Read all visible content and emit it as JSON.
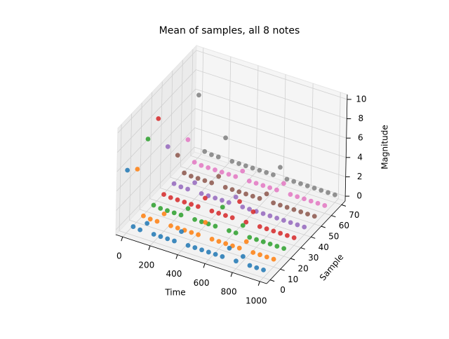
{
  "chart_data": {
    "type": "scatter3d",
    "title": "Mean of samples, all 8 notes",
    "x_label": "Time",
    "y_label": "Sample",
    "z_label": "Magnitude",
    "xlim": [
      -50,
      1050
    ],
    "ylim": [
      -3.5,
      73.5
    ],
    "zlim": [
      -0.5,
      10.5
    ],
    "xticks": [
      0,
      200,
      400,
      600,
      800,
      1000
    ],
    "yticks": [
      0,
      10,
      20,
      30,
      40,
      50,
      60,
      70
    ],
    "zticks": [
      0,
      2,
      4,
      6,
      8,
      10
    ],
    "grid": true,
    "x": [
      0,
      50,
      100,
      150,
      200,
      250,
      300,
      350,
      400,
      450,
      500,
      550,
      600,
      650,
      700,
      750,
      800,
      850,
      900,
      950,
      1000
    ],
    "series": [
      {
        "sample": 0,
        "color": "#1f77b4",
        "values": [
          6,
          0.4,
          0.3,
          1.2,
          0.3,
          0.3,
          0.3,
          0.3,
          1.5,
          0.3,
          0.3,
          0.3,
          0.3,
          0.3,
          0.3,
          1.4,
          0.3,
          1.0,
          0.3,
          0.3,
          0.3
        ]
      },
      {
        "sample": 10,
        "color": "#ff7f0e",
        "values": [
          5,
          0.4,
          0.3,
          0.3,
          1.3,
          0.3,
          0.3,
          0.3,
          0.3,
          0.3,
          1.8,
          0.3,
          0.3,
          0.3,
          0.3,
          0.3,
          1.2,
          0.3,
          0.3,
          0.3,
          0.3
        ]
      },
      {
        "sample": 20,
        "color": "#2ca02c",
        "values": [
          7,
          0.4,
          0.3,
          0.3,
          0.3,
          0.3,
          1.2,
          0.3,
          0.3,
          0.3,
          0.3,
          2.5,
          0.3,
          0.3,
          1.3,
          0.3,
          0.3,
          0.3,
          0.3,
          0.3,
          0.3
        ]
      },
      {
        "sample": 30,
        "color": "#d62728",
        "values": [
          8,
          0.4,
          0.3,
          0.3,
          0.3,
          0.3,
          0.3,
          1.4,
          0.3,
          0.3,
          0.3,
          0.3,
          2.2,
          0.3,
          1.6,
          0.3,
          0.3,
          0.3,
          0.3,
          0.3,
          0.3
        ]
      },
      {
        "sample": 40,
        "color": "#9467bd",
        "values": [
          4,
          0.4,
          0.3,
          0.3,
          1.2,
          0.3,
          0.3,
          0.3,
          0.3,
          0.3,
          1.1,
          0.3,
          0.3,
          0.3,
          0.3,
          0.3,
          0.3,
          0.3,
          0.3,
          0.3,
          0.3
        ]
      },
      {
        "sample": 50,
        "color": "#8c564b",
        "values": [
          2,
          0.4,
          0.3,
          0.3,
          0.3,
          0.3,
          1.2,
          0.3,
          0.3,
          0.3,
          0.3,
          0.3,
          0.3,
          1.0,
          0.3,
          0.3,
          0.3,
          0.3,
          0.3,
          0.3,
          0.3
        ]
      },
      {
        "sample": 60,
        "color": "#e377c2",
        "values": [
          2.5,
          0.4,
          0.3,
          0.3,
          0.3,
          0.3,
          0.3,
          0.3,
          1.1,
          0.3,
          0.3,
          0.3,
          0.3,
          0.3,
          1.2,
          0.3,
          0.3,
          0.3,
          0.3,
          0.3,
          0.3
        ]
      },
      {
        "sample": 70,
        "color": "#7f7f7f",
        "values": [
          6,
          0.4,
          0.3,
          0.3,
          2.5,
          0.3,
          0.3,
          0.3,
          0.3,
          0.3,
          0.3,
          0.3,
          1.3,
          0.3,
          0.3,
          0.3,
          0.3,
          0.3,
          0.3,
          0.3,
          0.3
        ]
      }
    ]
  }
}
